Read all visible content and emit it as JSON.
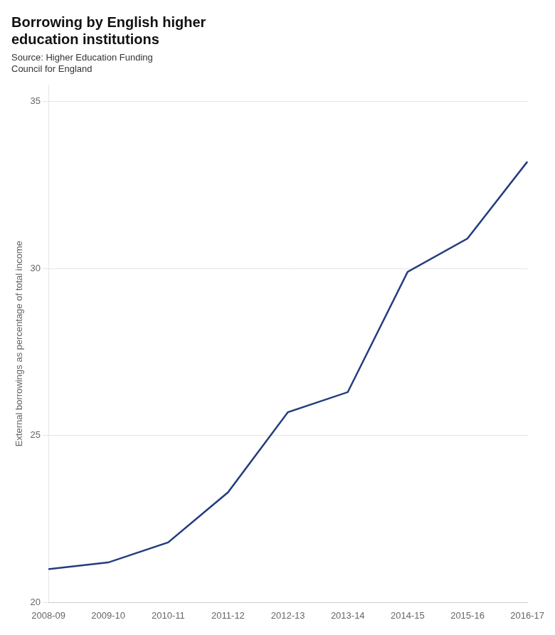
{
  "chart_data": {
    "type": "line",
    "title": "Borrowing by English higher\neducation institutions",
    "subtitle": "Source: Higher Education Funding\nCouncil for England",
    "y_label": "External borrowings as percentage of total income",
    "categories": [
      "2008-09",
      "2009-10",
      "2010-11",
      "2011-12",
      "2012-13",
      "2013-14",
      "2014-15",
      "2015-16",
      "2016-17"
    ],
    "values": [
      21.0,
      21.2,
      21.8,
      23.3,
      25.7,
      26.3,
      29.9,
      30.9,
      33.2
    ],
    "color": "#253d7f",
    "ylim": [
      20,
      35.5
    ],
    "yticks": [
      20,
      25,
      30,
      35
    ],
    "grid": true
  }
}
